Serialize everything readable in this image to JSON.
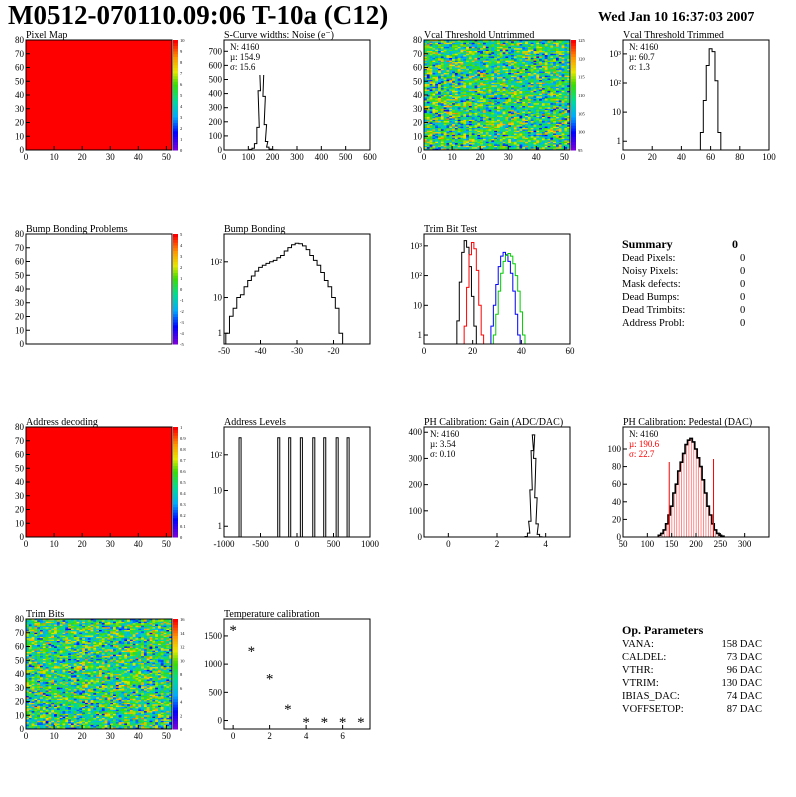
{
  "header": {
    "title": "M0512-070110.09:06 T-10a (C12)",
    "date": "Wed Jan 10 16:37:03 2007"
  },
  "summary": {
    "title": "Summary",
    "total": "0",
    "rows": [
      {
        "label": "Dead Pixels:",
        "value": "0"
      },
      {
        "label": "Noisy Pixels:",
        "value": "0"
      },
      {
        "label": "Mask defects:",
        "value": "0"
      },
      {
        "label": "Dead Bumps:",
        "value": "0"
      },
      {
        "label": "Dead Trimbits:",
        "value": "0"
      },
      {
        "label": "Address Probl:",
        "value": "0"
      }
    ]
  },
  "op_params": {
    "title": "Op. Parameters",
    "rows": [
      {
        "label": "VANA:",
        "value": "158 DAC"
      },
      {
        "label": "CALDEL:",
        "value": "73 DAC"
      },
      {
        "label": "VTHR:",
        "value": "96 DAC"
      },
      {
        "label": "VTRIM:",
        "value": "130 DAC"
      },
      {
        "label": "IBIAS_DAC:",
        "value": "74 DAC"
      },
      {
        "label": "VOFFSETOP:",
        "value": "87 DAC"
      }
    ]
  },
  "chart_data": [
    {
      "id": "pixel-map",
      "type": "heatmap",
      "title": "Pixel Map",
      "fill": "uniform",
      "value": 10,
      "xlim": [
        0,
        52
      ],
      "ylim": [
        0,
        80
      ],
      "xticks": [
        0,
        10,
        20,
        30,
        40,
        50
      ],
      "yticks": [
        0,
        10,
        20,
        30,
        40,
        50,
        60,
        70,
        80
      ],
      "zticks": [
        "0",
        "1",
        "2",
        "3",
        "4",
        "5",
        "6",
        "7",
        "8",
        "9",
        "10"
      ]
    },
    {
      "id": "scurve-width",
      "type": "histogram",
      "title": "S-Curve widths: Noise (e⁻)",
      "xlim": [
        0,
        600
      ],
      "ylim": [
        0,
        780
      ],
      "logy": false,
      "xticks": [
        0,
        100,
        200,
        300,
        400,
        500,
        600
      ],
      "yticks": [
        0,
        100,
        200,
        300,
        400,
        500,
        600,
        700
      ],
      "stats": [
        "N: 4160",
        "µ: 154.9",
        "σ: 15.6"
      ],
      "series": [
        {
          "color": "#000000",
          "x": [
            100,
            110,
            120,
            130,
            140,
            145,
            150,
            155,
            160,
            165,
            170,
            175,
            180,
            190,
            200,
            210,
            240
          ],
          "y": [
            0,
            4,
            12,
            45,
            160,
            420,
            650,
            720,
            620,
            380,
            180,
            60,
            20,
            6,
            2,
            1,
            0
          ]
        }
      ]
    },
    {
      "id": "vcal-untrimmed",
      "type": "heatmap",
      "title": "Vcal Threshold Untrimmed",
      "fill": "noisy",
      "xlim": [
        0,
        52
      ],
      "ylim": [
        0,
        80
      ],
      "xticks": [
        0,
        10,
        20,
        30,
        40,
        50
      ],
      "yticks": [
        0,
        10,
        20,
        30,
        40,
        50,
        60,
        70,
        80
      ],
      "zticks": [
        "95",
        "100",
        "105",
        "110",
        "115",
        "120",
        "125"
      ]
    },
    {
      "id": "vcal-trimmed",
      "type": "histogram",
      "title": "Vcal Threshold Trimmed",
      "xlim": [
        0,
        100
      ],
      "ylim": [
        0.5,
        3000
      ],
      "logy": true,
      "xticks": [
        0,
        20,
        40,
        60,
        80,
        100
      ],
      "ytickLabels": [
        "1",
        "10",
        "10²",
        "10³"
      ],
      "yticks": [
        1,
        10,
        100,
        1000
      ],
      "stats": [
        "N: 4160",
        "µ: 60.7",
        "σ: 1.3"
      ],
      "series": [
        {
          "color": "#000000",
          "x": [
            54,
            56,
            58,
            60,
            62,
            64,
            66
          ],
          "y": [
            2,
            25,
            400,
            1500,
            1200,
            120,
            2
          ]
        }
      ]
    },
    {
      "id": "bump-bonding-problems",
      "type": "heatmap",
      "title": "Bump Bonding Problems",
      "fill": "empty",
      "xlim": [
        0,
        52
      ],
      "ylim": [
        0,
        80
      ],
      "xticks": [],
      "yticks": [
        0,
        10,
        20,
        30,
        40,
        50,
        60,
        70,
        80
      ],
      "zticks": [
        "-5",
        "-4",
        "-3",
        "-2",
        "-1",
        "0",
        "1",
        "2",
        "3",
        "4",
        "5"
      ]
    },
    {
      "id": "bump-bonding",
      "type": "histogram",
      "title": "Bump Bonding",
      "xlim": [
        -50,
        -10
      ],
      "ylim": [
        0.5,
        600
      ],
      "logy": true,
      "xticks": [
        -50,
        -40,
        -30,
        -20
      ],
      "ytickLabels": [
        "1",
        "10",
        "10²"
      ],
      "yticks": [
        1,
        10,
        100
      ],
      "series": [
        {
          "color": "#000000",
          "x": [
            -49,
            -48,
            -47,
            -46,
            -45,
            -44,
            -43,
            -42,
            -41,
            -40,
            -39,
            -38,
            -37,
            -36,
            -35,
            -34,
            -33,
            -32,
            -31,
            -30,
            -29,
            -28,
            -27,
            -26,
            -25,
            -24,
            -23,
            -22,
            -21,
            -20,
            -19,
            -18,
            -17,
            -16
          ],
          "y": [
            1,
            3,
            5,
            10,
            12,
            20,
            30,
            40,
            55,
            70,
            80,
            90,
            100,
            110,
            130,
            150,
            200,
            250,
            300,
            330,
            320,
            280,
            220,
            150,
            110,
            80,
            50,
            30,
            20,
            10,
            5,
            1,
            0,
            0
          ]
        }
      ]
    },
    {
      "id": "trim-bit-test",
      "type": "histogram",
      "title": "Trim Bit Test",
      "xlim": [
        0,
        60
      ],
      "ylim": [
        0.5,
        2500
      ],
      "logy": true,
      "xticks": [
        0,
        20,
        40,
        60
      ],
      "ytickLabels": [
        "1",
        "10",
        "10²",
        "10³"
      ],
      "yticks": [
        1,
        10,
        100,
        1000
      ],
      "series": [
        {
          "color": "#000000",
          "x": [
            14,
            15,
            16,
            17,
            18,
            19,
            20,
            21
          ],
          "y": [
            3,
            60,
            600,
            1500,
            900,
            200,
            20,
            2
          ]
        },
        {
          "color": "#ff0000",
          "x": [
            17,
            18,
            19,
            20,
            21,
            22,
            23,
            24
          ],
          "y": [
            2,
            40,
            500,
            1300,
            800,
            150,
            10,
            1
          ]
        },
        {
          "color": "#0000ff",
          "x": [
            28,
            29,
            30,
            31,
            32,
            33,
            34,
            35,
            36,
            37,
            38,
            39
          ],
          "y": [
            2,
            10,
            50,
            200,
            450,
            600,
            500,
            300,
            120,
            30,
            5,
            1
          ]
        },
        {
          "color": "#00cc00",
          "x": [
            29,
            30,
            31,
            32,
            33,
            34,
            35,
            36,
            37,
            38,
            39,
            40,
            41
          ],
          "y": [
            1,
            5,
            30,
            120,
            300,
            480,
            550,
            450,
            250,
            100,
            30,
            6,
            1
          ]
        }
      ]
    },
    {
      "id": "address-decoding",
      "type": "heatmap",
      "title": "Address decoding",
      "fill": "uniform",
      "value": 1,
      "xlim": [
        0,
        52
      ],
      "ylim": [
        0,
        80
      ],
      "xticks": [
        0,
        10,
        20,
        30,
        40,
        50
      ],
      "yticks": [
        0,
        10,
        20,
        30,
        40,
        50,
        60,
        70,
        80
      ],
      "zticks": [
        "0",
        "0.1",
        "0.2",
        "0.3",
        "0.4",
        "0.5",
        "0.6",
        "0.7",
        "0.8",
        "0.9",
        "1"
      ]
    },
    {
      "id": "address-levels",
      "type": "histogram",
      "title": "Address Levels",
      "xlim": [
        -1000,
        1000
      ],
      "ylim": [
        0.5,
        600
      ],
      "logy": true,
      "xticks": [
        -1000,
        -500,
        0,
        500,
        1000
      ],
      "ytickLabels": [
        "1",
        "10",
        "10²"
      ],
      "yticks": [
        1,
        10,
        100
      ],
      "series": [
        {
          "color": "#000000",
          "spikes": [
            -780,
            -250,
            -100,
            60,
            230,
            380,
            550,
            700
          ],
          "y": 300,
          "w": 28
        }
      ]
    },
    {
      "id": "ph-gain",
      "type": "histogram",
      "title": "PH Calibration: Gain (ADC/DAC)",
      "xlim": [
        -1,
        5
      ],
      "ylim": [
        0,
        420
      ],
      "logy": false,
      "xticks": [
        0,
        2,
        4
      ],
      "yticks": [
        0,
        100,
        200,
        300,
        400
      ],
      "stats": [
        "N: 4160",
        "µ: 3.54",
        "σ: 0.10"
      ],
      "series": [
        {
          "color": "#000000",
          "x": [
            3.2,
            3.3,
            3.35,
            3.4,
            3.45,
            3.5,
            3.55,
            3.6,
            3.65,
            3.7,
            3.8
          ],
          "y": [
            2,
            15,
            60,
            180,
            330,
            390,
            300,
            150,
            50,
            10,
            1
          ]
        }
      ]
    },
    {
      "id": "ph-pedestal",
      "type": "histogram",
      "title": "PH Calibration: Pedestal (DAC)",
      "xlim": [
        50,
        350
      ],
      "ylim": [
        0,
        125
      ],
      "logy": false,
      "xticks": [
        50,
        100,
        150,
        200,
        250,
        300
      ],
      "yticks": [
        0,
        20,
        40,
        60,
        80,
        100
      ],
      "stats": [
        "N: 4160",
        "µ: 190.6",
        "σ: 22.7"
      ],
      "series": [
        {
          "color": "#000000",
          "fill": "#ff4040",
          "x": [
            125,
            130,
            135,
            140,
            145,
            150,
            155,
            160,
            165,
            170,
            175,
            180,
            185,
            190,
            195,
            200,
            205,
            210,
            215,
            220,
            225,
            230,
            235,
            240,
            245,
            250,
            255
          ],
          "y": [
            2,
            4,
            8,
            15,
            25,
            35,
            50,
            60,
            75,
            85,
            95,
            105,
            110,
            112,
            108,
            100,
            90,
            80,
            65,
            50,
            35,
            25,
            15,
            8,
            4,
            2,
            1
          ]
        }
      ],
      "markers": [
        145,
        236
      ]
    },
    {
      "id": "trim-bits",
      "type": "heatmap",
      "title": "Trim Bits",
      "fill": "noisy",
      "xlim": [
        0,
        52
      ],
      "ylim": [
        0,
        80
      ],
      "xticks": [
        0,
        10,
        20,
        30,
        40,
        50
      ],
      "yticks": [
        0,
        10,
        20,
        30,
        40,
        50,
        60,
        70,
        80
      ],
      "zticks": [
        "0",
        "2",
        "4",
        "6",
        "8",
        "10",
        "12",
        "14",
        "16"
      ]
    },
    {
      "id": "temperature-calibration",
      "type": "scatter",
      "title": "Temperature calibration",
      "xlim": [
        -0.5,
        7.5
      ],
      "ylim": [
        -150,
        1800
      ],
      "logy": false,
      "xticks": [
        0,
        2,
        4,
        6
      ],
      "yticks": [
        0,
        500,
        1000,
        1500
      ],
      "series": [
        {
          "color": "#000000",
          "marker": "*",
          "x": [
            0,
            1,
            2,
            3,
            4,
            5,
            6,
            7
          ],
          "y": [
            1620,
            1250,
            760,
            220,
            -10,
            -10,
            -10,
            -10
          ]
        }
      ]
    }
  ]
}
